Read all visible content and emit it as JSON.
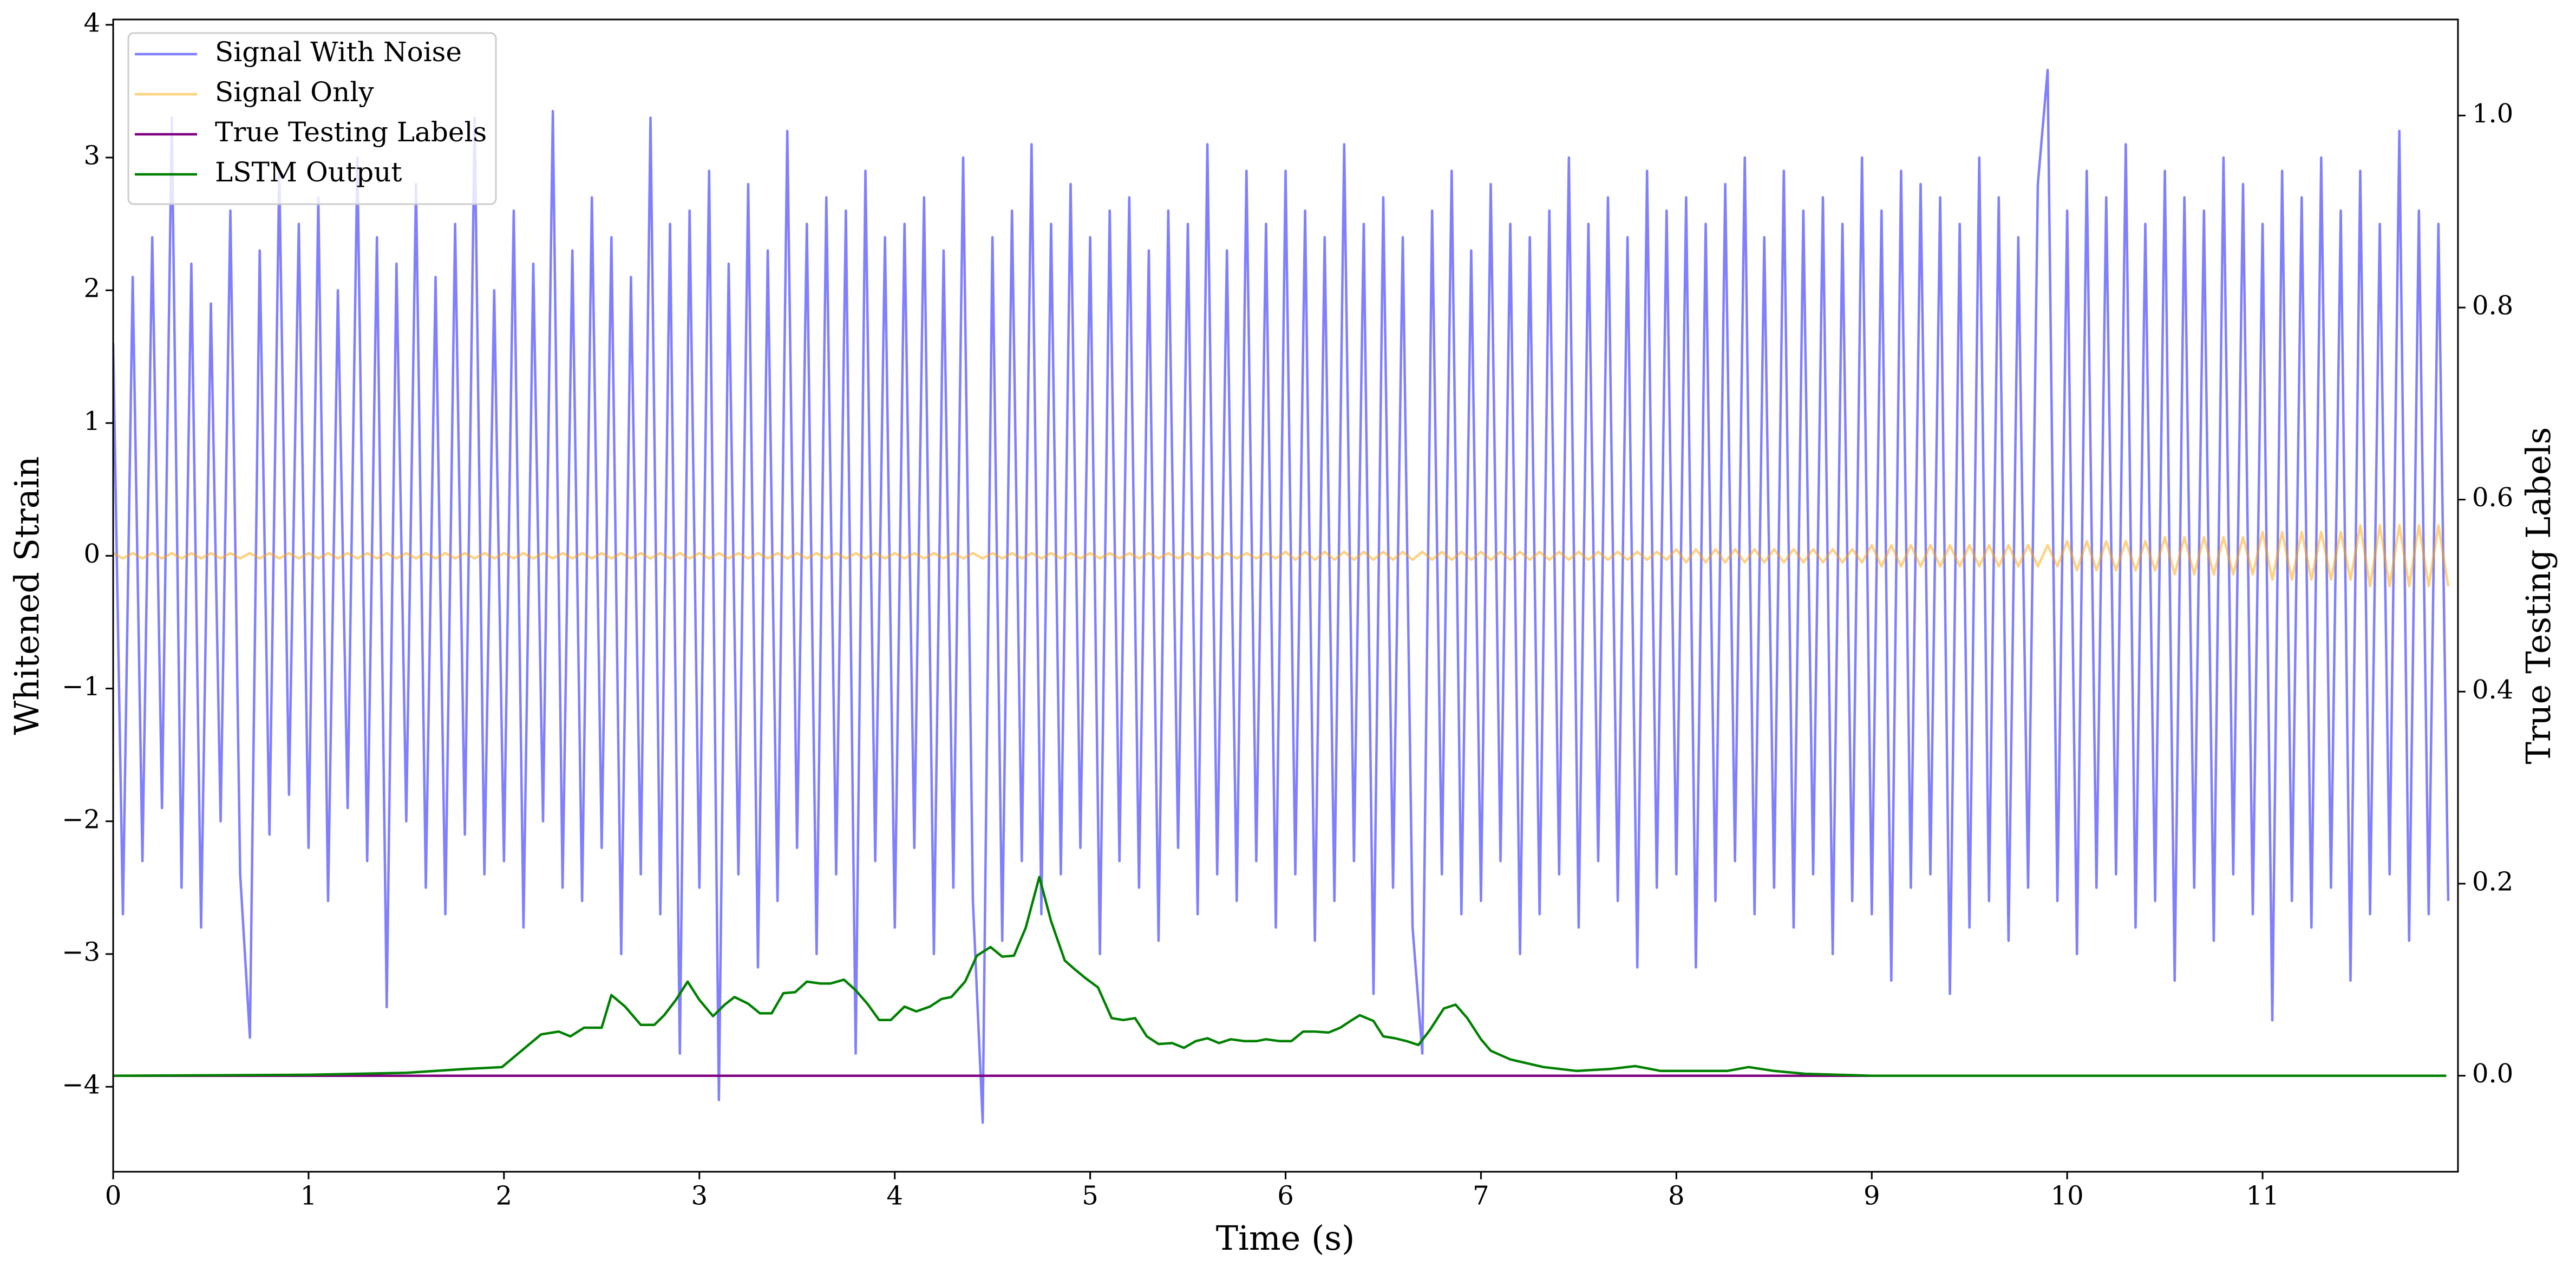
{
  "chart_data": {
    "type": "line",
    "xlabel": "Time (s)",
    "ylabel": "Whitened Strain",
    "y2label": "True Testing Labels",
    "xlim": [
      0,
      12
    ],
    "ylim": [
      -4.64,
      4.04
    ],
    "y2lim": [
      -0.1,
      1.1
    ],
    "xticks": [
      0,
      1,
      2,
      3,
      4,
      5,
      6,
      7,
      8,
      9,
      10,
      11
    ],
    "yticks": [
      {
        "value": -4,
        "label": "−4"
      },
      {
        "value": -3,
        "label": "−3"
      },
      {
        "value": -2,
        "label": "−2"
      },
      {
        "value": -1,
        "label": "−1"
      },
      0,
      1,
      2,
      3,
      4
    ],
    "y2ticks": [
      {
        "value": 0,
        "label": "0.0"
      },
      0.2,
      0.4,
      0.6,
      0.8,
      {
        "value": 1,
        "label": "1.0"
      }
    ],
    "legend": "upper left",
    "x": [
      0,
      0.05,
      0.1,
      0.15,
      0.2,
      0.25,
      0.3,
      0.35,
      0.4,
      0.45,
      0.5,
      0.55,
      0.6,
      0.65,
      0.7,
      0.75,
      0.8,
      0.85,
      0.9,
      0.95,
      1,
      1.05,
      1.1,
      1.15,
      1.2,
      1.25,
      1.3,
      1.35,
      1.4,
      1.45,
      1.5,
      1.55,
      1.6,
      1.65,
      1.7,
      1.75,
      1.8,
      1.85,
      1.9,
      1.95,
      2,
      2.05,
      2.1,
      2.15,
      2.2,
      2.25,
      2.3,
      2.35,
      2.4,
      2.45,
      2.5,
      2.55,
      2.6,
      2.65,
      2.7,
      2.75,
      2.8,
      2.85,
      2.9,
      2.95,
      3,
      3.05,
      3.1,
      3.15,
      3.2,
      3.25,
      3.3,
      3.35,
      3.4,
      3.45,
      3.5,
      3.55,
      3.6,
      3.65,
      3.7,
      3.75,
      3.8,
      3.85,
      3.9,
      3.95,
      4,
      4.05,
      4.1,
      4.15,
      4.2,
      4.25,
      4.3,
      4.35,
      4.4,
      4.45,
      4.5,
      4.55,
      4.6,
      4.65,
      4.7,
      4.75,
      4.8,
      4.85,
      4.9,
      4.95,
      5,
      5.05,
      5.1,
      5.15,
      5.2,
      5.25,
      5.3,
      5.35,
      5.4,
      5.45,
      5.5,
      5.55,
      5.6,
      5.65,
      5.7,
      5.75,
      5.8,
      5.85,
      5.9,
      5.95,
      6,
      6.05,
      6.1,
      6.15,
      6.2,
      6.25,
      6.3,
      6.35,
      6.4,
      6.45,
      6.5,
      6.55,
      6.6,
      6.65,
      6.7,
      6.75,
      6.8,
      6.85,
      6.9,
      6.95,
      7,
      7.05,
      7.1,
      7.15,
      7.2,
      7.25,
      7.3,
      7.35,
      7.4,
      7.45,
      7.5,
      7.55,
      7.6,
      7.65,
      7.7,
      7.75,
      7.8,
      7.85,
      7.9,
      7.95,
      8,
      8.05,
      8.1,
      8.15,
      8.2,
      8.25,
      8.3,
      8.35,
      8.4,
      8.45,
      8.5,
      8.55,
      8.6,
      8.65,
      8.7,
      8.75,
      8.8,
      8.85,
      8.9,
      8.95,
      9,
      9.05,
      9.1,
      9.15,
      9.2,
      9.25,
      9.3,
      9.35,
      9.4,
      9.45,
      9.5,
      9.55,
      9.6,
      9.65,
      9.7,
      9.75,
      9.8,
      9.85,
      9.9,
      9.95,
      10,
      10.05,
      10.1,
      10.15,
      10.2,
      10.25,
      10.3,
      10.35,
      10.4,
      10.45,
      10.5,
      10.55,
      10.6,
      10.65,
      10.7,
      10.75,
      10.8,
      10.85,
      10.9,
      10.95,
      11,
      11.05,
      11.1,
      11.15,
      11.2,
      11.25,
      11.3,
      11.35,
      11.4,
      11.45,
      11.5,
      11.55,
      11.6,
      11.65,
      11.7,
      11.75,
      11.8,
      11.85,
      11.9,
      11.95
    ],
    "series": [
      {
        "name": "Signal With Noise",
        "color": "#0000ff",
        "alpha": 0.5,
        "values": [
          1.6,
          -2.7,
          2.1,
          -2.3,
          2.4,
          -1.9,
          3.3,
          -2.5,
          2.2,
          -2.8,
          1.9,
          -2.0,
          2.6,
          -2.4,
          -3.63,
          2.3,
          -2.1,
          2.9,
          -1.8,
          2.5,
          -2.2,
          2.7,
          -2.6,
          2.0,
          -1.9,
          3.0,
          -2.3,
          2.4,
          -3.4,
          2.2,
          -2.0,
          2.8,
          -2.5,
          2.1,
          -2.7,
          2.5,
          -2.1,
          3.3,
          -2.4,
          2.0,
          -2.3,
          2.6,
          -2.8,
          2.2,
          -2.0,
          3.35,
          -2.5,
          2.3,
          -2.6,
          2.7,
          -2.2,
          2.4,
          -3.0,
          2.1,
          -2.4,
          3.3,
          -2.7,
          2.5,
          -3.75,
          2.6,
          -2.5,
          2.9,
          -4.1,
          2.2,
          -2.4,
          2.8,
          -3.1,
          2.3,
          -2.6,
          3.2,
          -2.2,
          2.5,
          -3.0,
          2.7,
          -2.4,
          2.6,
          -3.75,
          2.9,
          -2.3,
          2.4,
          -2.8,
          2.5,
          -2.2,
          2.7,
          -3.0,
          2.3,
          -2.5,
          3.0,
          -2.6,
          -4.27,
          2.4,
          -2.9,
          2.6,
          -2.3,
          3.1,
          -2.7,
          2.5,
          -2.4,
          2.8,
          -2.2,
          2.4,
          -3.0,
          2.6,
          -2.3,
          2.7,
          -2.5,
          2.3,
          -2.9,
          2.6,
          -2.2,
          2.5,
          -2.7,
          3.1,
          -2.4,
          2.3,
          -2.6,
          2.9,
          -2.3,
          2.5,
          -2.8,
          2.9,
          -2.4,
          2.6,
          -2.9,
          2.4,
          -2.6,
          3.1,
          -2.3,
          2.5,
          -3.3,
          2.7,
          -2.5,
          2.4,
          -2.8,
          -3.75,
          2.6,
          -2.4,
          2.9,
          -2.7,
          2.3,
          -2.6,
          2.8,
          -2.3,
          2.5,
          -3.0,
          2.4,
          -2.7,
          2.6,
          -2.4,
          3.0,
          -2.8,
          2.5,
          -2.3,
          2.7,
          -2.6,
          2.4,
          -3.1,
          2.9,
          -2.5,
          2.6,
          -2.4,
          2.7,
          -3.1,
          2.5,
          -2.6,
          2.8,
          -2.3,
          3.0,
          -2.7,
          2.4,
          -2.5,
          2.9,
          -2.8,
          2.6,
          -2.4,
          2.7,
          -3.0,
          2.5,
          -2.6,
          3.0,
          -2.7,
          2.6,
          -3.2,
          2.9,
          -2.5,
          2.8,
          -2.4,
          2.7,
          -3.3,
          2.5,
          -2.8,
          3.0,
          -2.6,
          2.7,
          -2.9,
          2.4,
          -2.5,
          2.8,
          3.66,
          -2.6,
          2.6,
          -3.0,
          2.9,
          -2.5,
          2.7,
          -2.4,
          3.1,
          -2.8,
          2.5,
          -2.6,
          2.9,
          -3.2,
          2.7,
          -2.5,
          2.6,
          -2.9,
          3.0,
          -2.4,
          2.8,
          -2.7,
          2.5,
          -3.5,
          2.9,
          -2.6,
          2.7,
          -2.8,
          3.0,
          -2.5,
          2.6,
          -3.2,
          2.9,
          -2.7,
          2.5,
          -2.4,
          3.2,
          -2.9,
          2.6,
          -2.7,
          2.5,
          -2.6
        ]
      },
      {
        "name": "Signal Only",
        "color": "#ffa500",
        "alpha": 0.5,
        "values": [
          0.02,
          -0.02,
          0.02,
          -0.02,
          0.02,
          -0.02,
          0.02,
          -0.02,
          0.02,
          -0.02,
          0.02,
          -0.02,
          0.02,
          -0.02,
          0.02,
          -0.02,
          0.02,
          -0.02,
          0.02,
          -0.02,
          0.02,
          -0.02,
          0.02,
          -0.02,
          0.02,
          -0.02,
          0.02,
          -0.02,
          0.02,
          -0.02,
          0.02,
          -0.02,
          0.02,
          -0.02,
          0.02,
          -0.02,
          0.02,
          -0.02,
          0.02,
          -0.02,
          0.02,
          -0.02,
          0.02,
          -0.02,
          0.02,
          -0.02,
          0.02,
          -0.02,
          0.02,
          -0.02,
          0.02,
          -0.02,
          0.02,
          -0.02,
          0.02,
          -0.02,
          0.02,
          -0.02,
          0.02,
          -0.02,
          0.02,
          -0.02,
          0.02,
          -0.02,
          0.02,
          -0.02,
          0.02,
          -0.02,
          0.02,
          -0.02,
          0.02,
          -0.02,
          0.02,
          -0.02,
          0.02,
          -0.02,
          0.02,
          -0.02,
          0.02,
          -0.02,
          0.02,
          -0.02,
          0.02,
          -0.02,
          0.02,
          -0.02,
          0.02,
          -0.02,
          0.02,
          -0.02,
          0.02,
          -0.02,
          0.02,
          -0.02,
          0.02,
          -0.02,
          0.02,
          -0.02,
          0.02,
          -0.02,
          0.02,
          -0.02,
          0.02,
          -0.02,
          0.02,
          -0.02,
          0.02,
          -0.02,
          0.02,
          -0.02,
          0.02,
          -0.02,
          0.02,
          -0.02,
          0.02,
          -0.02,
          0.02,
          -0.02,
          0.02,
          -0.02,
          0.03,
          -0.03,
          0.03,
          -0.03,
          0.03,
          -0.03,
          0.03,
          -0.03,
          0.03,
          -0.03,
          0.03,
          -0.03,
          0.03,
          -0.03,
          0.03,
          -0.03,
          0.03,
          -0.03,
          0.03,
          -0.03,
          0.03,
          -0.03,
          0.03,
          -0.03,
          0.03,
          -0.03,
          0.03,
          -0.03,
          0.03,
          -0.03,
          0.03,
          -0.03,
          0.03,
          -0.03,
          0.03,
          -0.03,
          0.03,
          -0.03,
          0.03,
          -0.03,
          0.05,
          -0.05,
          0.05,
          -0.05,
          0.05,
          -0.05,
          0.05,
          -0.05,
          0.05,
          -0.05,
          0.05,
          -0.05,
          0.05,
          -0.05,
          0.05,
          -0.05,
          0.05,
          -0.05,
          0.05,
          -0.05,
          0.08,
          -0.08,
          0.08,
          -0.08,
          0.08,
          -0.08,
          0.08,
          -0.08,
          0.08,
          -0.08,
          0.08,
          -0.08,
          0.08,
          -0.08,
          0.08,
          -0.08,
          0.08,
          -0.08,
          0.08,
          -0.08,
          0.11,
          -0.11,
          0.11,
          -0.11,
          0.11,
          -0.11,
          0.11,
          -0.11,
          0.11,
          -0.11,
          0.14,
          -0.14,
          0.14,
          -0.14,
          0.14,
          -0.14,
          0.14,
          -0.14,
          0.14,
          -0.14,
          0.18,
          -0.18,
          0.18,
          -0.18,
          0.18,
          -0.18,
          0.18,
          -0.18,
          0.18,
          -0.18,
          0.23,
          -0.23,
          0.23,
          -0.23,
          0.23,
          -0.23,
          0.23,
          -0.23,
          0.23,
          -0.23
        ]
      },
      {
        "name": "True Testing Labels",
        "color": "#800080",
        "axis": "y2",
        "x": [
          0,
          11.94
        ],
        "values": [
          0,
          0
        ]
      },
      {
        "name": "LSTM Output",
        "color": "#008000",
        "axis": "y2",
        "x": [
          0,
          1,
          1.5,
          1.8,
          1.99,
          2.19,
          2.28,
          2.34,
          2.41,
          2.5,
          2.55,
          2.62,
          2.7,
          2.77,
          2.82,
          2.88,
          2.94,
          3.0,
          3.07,
          3.13,
          3.18,
          3.25,
          3.31,
          3.37,
          3.43,
          3.49,
          3.55,
          3.62,
          3.67,
          3.74,
          3.8,
          3.86,
          3.92,
          3.98,
          4.05,
          4.11,
          4.18,
          4.24,
          4.29,
          4.36,
          4.42,
          4.49,
          4.55,
          4.61,
          4.67,
          4.74,
          4.8,
          4.87,
          4.92,
          4.98,
          5.04,
          5.11,
          5.17,
          5.23,
          5.29,
          5.35,
          5.42,
          5.48,
          5.54,
          5.6,
          5.66,
          5.72,
          5.79,
          5.85,
          5.9,
          5.97,
          6.03,
          6.09,
          6.15,
          6.22,
          6.28,
          6.34,
          6.38,
          6.45,
          6.5,
          6.56,
          6.62,
          6.68,
          6.74,
          6.81,
          6.87,
          6.93,
          7.0,
          7.05,
          7.15,
          7.32,
          7.49,
          7.66,
          7.79,
          7.92,
          8.09,
          8.26,
          8.37,
          8.5,
          8.66,
          9.0,
          9.5,
          11.94
        ],
        "values": [
          0,
          0.001,
          0.003,
          0.007,
          0.009,
          0.043,
          0.046,
          0.041,
          0.05,
          0.05,
          0.084,
          0.072,
          0.053,
          0.053,
          0.063,
          0.079,
          0.098,
          0.079,
          0.062,
          0.074,
          0.082,
          0.075,
          0.065,
          0.065,
          0.086,
          0.087,
          0.098,
          0.096,
          0.096,
          0.1,
          0.089,
          0.075,
          0.058,
          0.058,
          0.072,
          0.067,
          0.072,
          0.08,
          0.082,
          0.098,
          0.125,
          0.134,
          0.124,
          0.125,
          0.154,
          0.207,
          0.161,
          0.12,
          0.111,
          0.101,
          0.092,
          0.06,
          0.058,
          0.06,
          0.041,
          0.033,
          0.034,
          0.029,
          0.036,
          0.039,
          0.034,
          0.038,
          0.036,
          0.036,
          0.038,
          0.036,
          0.036,
          0.046,
          0.046,
          0.045,
          0.05,
          0.058,
          0.063,
          0.057,
          0.041,
          0.039,
          0.036,
          0.032,
          0.048,
          0.07,
          0.074,
          0.06,
          0.038,
          0.026,
          0.017,
          0.009,
          0.005,
          0.007,
          0.01,
          0.005,
          0.005,
          0.005,
          0.009,
          0.005,
          0.002,
          0,
          0,
          0
        ]
      }
    ]
  }
}
